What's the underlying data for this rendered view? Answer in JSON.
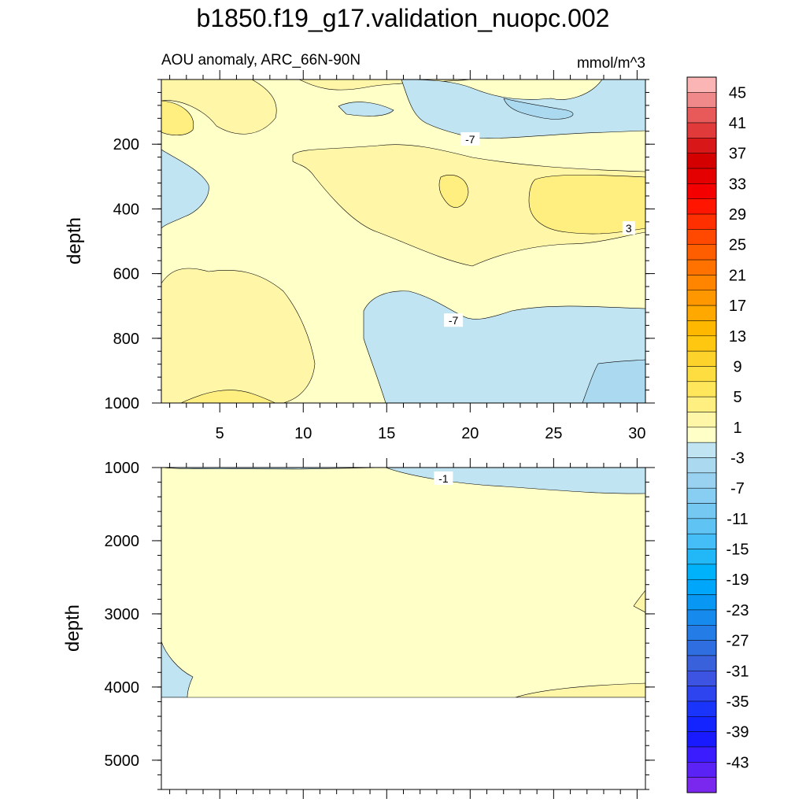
{
  "chart_data": {
    "type": "contour",
    "title": "b1850.f19_g17.validation_nuopc.002",
    "subtitle_left": "AOU anomaly, ARC_66N-90N",
    "units": "mmol/m^3",
    "xlim": [
      1.5,
      30.5
    ],
    "x_ticks": [
      5,
      10,
      15,
      20,
      25,
      30
    ],
    "x_tick_labels": [
      "5",
      "10",
      "15",
      "20",
      "25",
      "30"
    ],
    "panels": [
      {
        "name": "upper",
        "ylabel": "depth",
        "ylim": [
          0,
          1000
        ],
        "y_ticks": [
          200,
          400,
          600,
          800,
          1000
        ],
        "y_tick_labels": [
          "200",
          "400",
          "600",
          "800",
          "1000"
        ],
        "contour_labels": [
          {
            "text": "-7",
            "x": 20,
            "y": 185
          },
          {
            "text": "3",
            "x": 29.5,
            "y": 460
          },
          {
            "text": "-7",
            "x": 19,
            "y": 745
          }
        ]
      },
      {
        "name": "lower",
        "ylabel": "depth",
        "ylim": [
          1000,
          5400
        ],
        "y_ticks": [
          1000,
          2000,
          3000,
          4000,
          5000
        ],
        "y_tick_labels": [
          "1000",
          "2000",
          "3000",
          "4000",
          "5000"
        ],
        "bottom_depth": 4130,
        "contour_labels": [
          {
            "text": "-1",
            "x": 18.4,
            "y": 1150
          }
        ]
      }
    ],
    "colorbar": {
      "levels": [
        47,
        45,
        43,
        41,
        39,
        37,
        35,
        33,
        31,
        29,
        27,
        25,
        23,
        21,
        19,
        17,
        15,
        13,
        11,
        9,
        7,
        5,
        3,
        1,
        -1,
        -3,
        -5,
        -7,
        -9,
        -11,
        -13,
        -15,
        -17,
        -19,
        -21,
        -23,
        -25,
        -27,
        -29,
        -31,
        -33,
        -35,
        -37,
        -39,
        -41,
        -43,
        -45,
        -47
      ],
      "tick_labels": [
        "45",
        "41",
        "37",
        "33",
        "29",
        "25",
        "21",
        "17",
        "13",
        "9",
        "5",
        "1",
        "-3",
        "-7",
        "-11",
        "-15",
        "-19",
        "-23",
        "-27",
        "-31",
        "-35",
        "-39",
        "-43"
      ],
      "colors": [
        "#fbb5b5",
        "#f08a8a",
        "#e85a5a",
        "#e03a3a",
        "#d81818",
        "#d40000",
        "#e40000",
        "#f50000",
        "#ff1500",
        "#ff2f00",
        "#ff4800",
        "#ff5e00",
        "#ff7200",
        "#ff8500",
        "#ff9800",
        "#ffa800",
        "#ffb800",
        "#ffc710",
        "#fdd22a",
        "#fedd40",
        "#ffe65a",
        "#ffef80",
        "#fff6a8",
        "#ffffc8",
        "#c0e4f2",
        "#abdaf0",
        "#98d2f0",
        "#88cdf2",
        "#74c8f2",
        "#5fc3f4",
        "#45bdf6",
        "#22b8f8",
        "#00b2fa",
        "#00a6fa",
        "#0898f4",
        "#178aee",
        "#247ce6",
        "#2f6ee0",
        "#3a61dc",
        "#3d54e2",
        "#2d44ee",
        "#1a34fa",
        "#1424ff",
        "#1a1aff",
        "#3a1cff",
        "#5a22f4",
        "#7a28ee"
      ]
    },
    "fill_colors": {
      "0_to_2": "#ffffc8",
      "2_to_4": "#fff6a8",
      "4_to_6": "#ffef80",
      "neg2_to_0": "#c0e4f2",
      "neg4_to_neg2": "#abdaf0"
    }
  }
}
